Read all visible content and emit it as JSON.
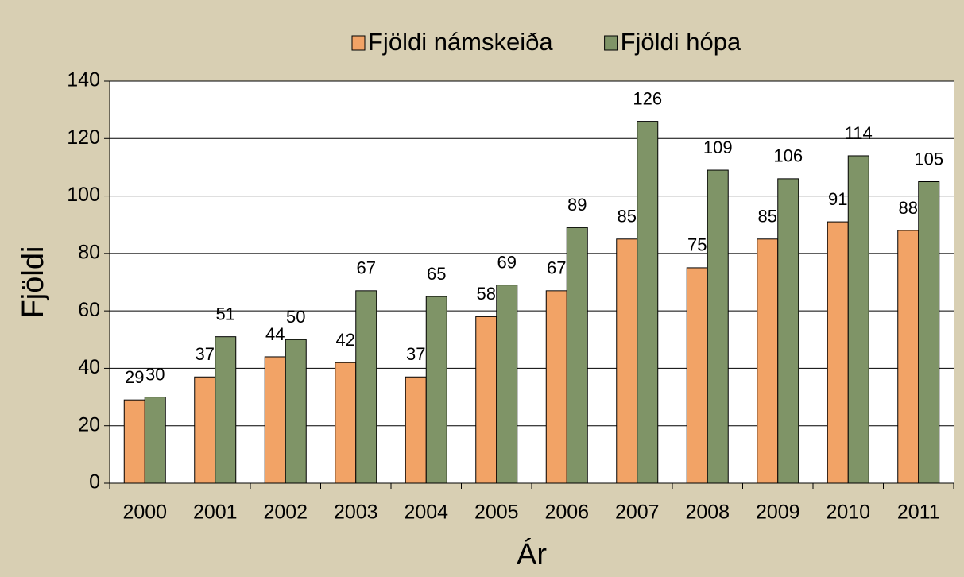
{
  "chart_data": {
    "type": "bar",
    "xlabel": "Ár",
    "ylabel": "Fjöldi",
    "categories": [
      "2000",
      "2001",
      "2002",
      "2003",
      "2004",
      "2005",
      "2006",
      "2007",
      "2008",
      "2009",
      "2010",
      "2011"
    ],
    "series": [
      {
        "name": "Fjöldi námskeiða",
        "color": "#f2a366",
        "values": [
          29,
          37,
          44,
          42,
          37,
          58,
          67,
          85,
          75,
          85,
          91,
          88
        ]
      },
      {
        "name": "Fjöldi hópa",
        "color": "#7f9467",
        "values": [
          30,
          51,
          50,
          67,
          65,
          69,
          89,
          126,
          109,
          106,
          114,
          105
        ]
      }
    ],
    "ylim": [
      0,
      140
    ],
    "yticks": [
      0,
      20,
      40,
      60,
      80,
      100,
      120,
      140
    ],
    "grid": true,
    "legend": "top"
  }
}
